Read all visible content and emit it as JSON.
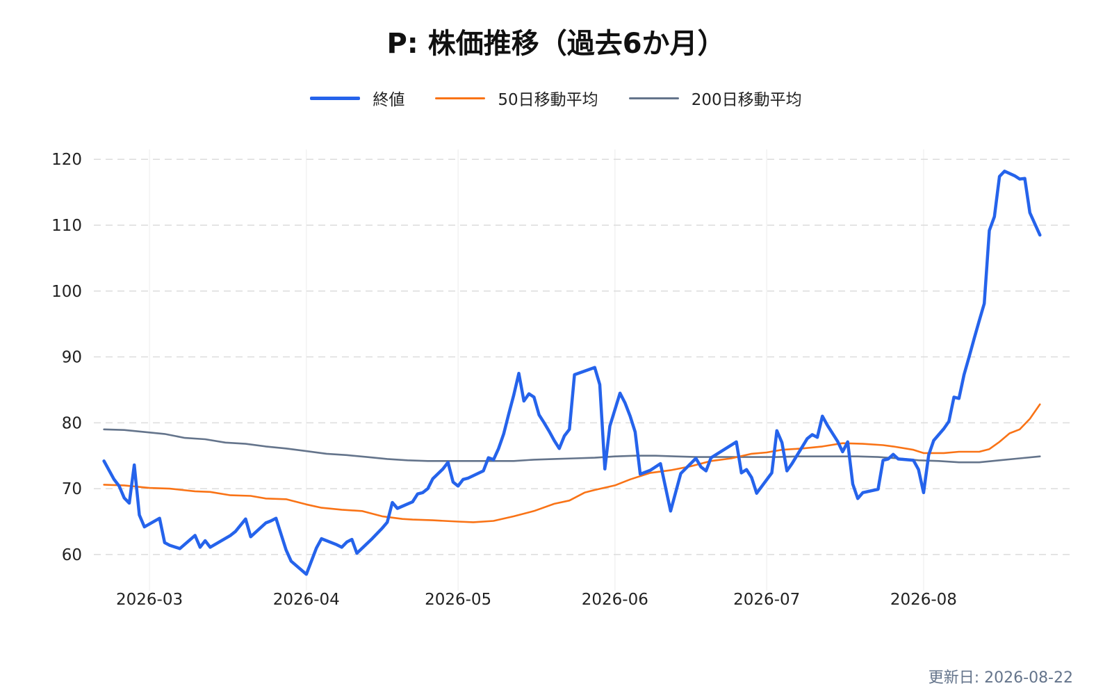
{
  "title": "P: 株価推移（過去6か月）",
  "updated": "更新日: 2026-08-22",
  "chart_data": {
    "type": "line",
    "title": "P: 株価推移（過去6か月）",
    "xlabel": "",
    "ylabel": "",
    "x_type": "date",
    "x_ticks": [
      "2026-03-01",
      "2026-04-01",
      "2026-05-01",
      "2026-06-01",
      "2026-07-01",
      "2026-08-01"
    ],
    "x_tick_labels": [
      "2026-03",
      "2026-04",
      "2026-05",
      "2026-06",
      "2026-07",
      "2026-08"
    ],
    "y_ticks": [
      60,
      70,
      80,
      90,
      100,
      110,
      120
    ],
    "xlim": [
      "2026-02-18",
      "2026-08-30"
    ],
    "ylim": [
      54.5,
      121.5
    ],
    "grid": {
      "y": "dashed",
      "x": "solid-light"
    },
    "legend": "top-center",
    "series": [
      {
        "name": "終値",
        "color": "#2563eb",
        "points": [
          [
            "2026-02-20",
            74.2
          ],
          [
            "2026-02-22",
            71.4
          ],
          [
            "2026-02-23",
            70.4
          ],
          [
            "2026-02-24",
            68.6
          ],
          [
            "2026-02-25",
            67.8
          ],
          [
            "2026-02-26",
            73.6
          ],
          [
            "2026-02-27",
            66.0
          ],
          [
            "2026-02-28",
            64.2
          ],
          [
            "2026-03-03",
            65.5
          ],
          [
            "2026-03-04",
            61.8
          ],
          [
            "2026-03-05",
            61.4
          ],
          [
            "2026-03-07",
            60.9
          ],
          [
            "2026-03-10",
            62.9
          ],
          [
            "2026-03-11",
            61.1
          ],
          [
            "2026-03-12",
            62.1
          ],
          [
            "2026-03-13",
            61.1
          ],
          [
            "2026-03-17",
            62.9
          ],
          [
            "2026-03-18",
            63.5
          ],
          [
            "2026-03-20",
            65.4
          ],
          [
            "2026-03-21",
            62.7
          ],
          [
            "2026-03-24",
            64.8
          ],
          [
            "2026-03-25",
            65.1
          ],
          [
            "2026-03-26",
            65.5
          ],
          [
            "2026-03-28",
            60.7
          ],
          [
            "2026-03-29",
            59.0
          ],
          [
            "2026-04-01",
            57.0
          ],
          [
            "2026-04-03",
            61.0
          ],
          [
            "2026-04-04",
            62.4
          ],
          [
            "2026-04-07",
            61.5
          ],
          [
            "2026-04-08",
            61.1
          ],
          [
            "2026-04-09",
            61.9
          ],
          [
            "2026-04-10",
            62.3
          ],
          [
            "2026-04-11",
            60.2
          ],
          [
            "2026-04-14",
            62.4
          ],
          [
            "2026-04-16",
            64.0
          ],
          [
            "2026-04-17",
            64.9
          ],
          [
            "2026-04-18",
            67.9
          ],
          [
            "2026-04-19",
            67.0
          ],
          [
            "2026-04-22",
            68.0
          ],
          [
            "2026-04-23",
            69.2
          ],
          [
            "2026-04-24",
            69.4
          ],
          [
            "2026-04-25",
            70.0
          ],
          [
            "2026-04-26",
            71.5
          ],
          [
            "2026-04-28",
            73.0
          ],
          [
            "2026-04-29",
            74.0
          ],
          [
            "2026-04-30",
            71.0
          ],
          [
            "2026-05-01",
            70.4
          ],
          [
            "2026-05-02",
            71.4
          ],
          [
            "2026-05-03",
            71.6
          ],
          [
            "2026-05-06",
            72.7
          ],
          [
            "2026-05-07",
            74.7
          ],
          [
            "2026-05-08",
            74.4
          ],
          [
            "2026-05-09",
            76.1
          ],
          [
            "2026-05-10",
            78.3
          ],
          [
            "2026-05-11",
            81.3
          ],
          [
            "2026-05-12",
            84.2
          ],
          [
            "2026-05-13",
            87.5
          ],
          [
            "2026-05-14",
            83.3
          ],
          [
            "2026-05-15",
            84.4
          ],
          [
            "2026-05-16",
            83.9
          ],
          [
            "2026-05-17",
            81.2
          ],
          [
            "2026-05-18",
            80.0
          ],
          [
            "2026-05-19",
            78.7
          ],
          [
            "2026-05-20",
            77.3
          ],
          [
            "2026-05-21",
            76.1
          ],
          [
            "2026-05-22",
            78.0
          ],
          [
            "2026-05-23",
            79.0
          ],
          [
            "2026-05-24",
            87.3
          ],
          [
            "2026-05-28",
            88.4
          ],
          [
            "2026-05-29",
            85.8
          ],
          [
            "2026-05-30",
            73.0
          ],
          [
            "2026-05-31",
            79.5
          ],
          [
            "2026-06-01",
            82.0
          ],
          [
            "2026-06-02",
            84.5
          ],
          [
            "2026-06-03",
            83.0
          ],
          [
            "2026-06-04",
            81.0
          ],
          [
            "2026-06-05",
            78.6
          ],
          [
            "2026-06-06",
            72.2
          ],
          [
            "2026-06-08",
            72.8
          ],
          [
            "2026-06-10",
            73.8
          ],
          [
            "2026-06-12",
            66.6
          ],
          [
            "2026-06-14",
            72.3
          ],
          [
            "2026-06-17",
            74.6
          ],
          [
            "2026-06-18",
            73.3
          ],
          [
            "2026-06-19",
            72.7
          ],
          [
            "2026-06-20",
            74.7
          ],
          [
            "2026-06-25",
            77.1
          ],
          [
            "2026-06-26",
            72.4
          ],
          [
            "2026-06-27",
            72.9
          ],
          [
            "2026-06-28",
            71.7
          ],
          [
            "2026-06-29",
            69.3
          ],
          [
            "2026-07-02",
            72.4
          ],
          [
            "2026-07-03",
            78.8
          ],
          [
            "2026-07-04",
            77.0
          ],
          [
            "2026-07-05",
            72.7
          ],
          [
            "2026-07-06",
            73.8
          ],
          [
            "2026-07-09",
            77.6
          ],
          [
            "2026-07-10",
            78.2
          ],
          [
            "2026-07-11",
            77.8
          ],
          [
            "2026-07-12",
            81.0
          ],
          [
            "2026-07-13",
            79.6
          ],
          [
            "2026-07-15",
            77.2
          ],
          [
            "2026-07-16",
            75.6
          ],
          [
            "2026-07-17",
            77.1
          ],
          [
            "2026-07-18",
            70.7
          ],
          [
            "2026-07-19",
            68.5
          ],
          [
            "2026-07-20",
            69.4
          ],
          [
            "2026-07-23",
            69.9
          ],
          [
            "2026-07-24",
            74.3
          ],
          [
            "2026-07-25",
            74.5
          ],
          [
            "2026-07-26",
            75.2
          ],
          [
            "2026-07-27",
            74.5
          ],
          [
            "2026-07-30",
            74.3
          ],
          [
            "2026-07-31",
            72.9
          ],
          [
            "2026-08-01",
            69.4
          ],
          [
            "2026-08-02",
            75.1
          ],
          [
            "2026-08-03",
            77.3
          ],
          [
            "2026-08-05",
            79.1
          ],
          [
            "2026-08-06",
            80.2
          ],
          [
            "2026-08-07",
            83.9
          ],
          [
            "2026-08-08",
            83.7
          ],
          [
            "2026-08-09",
            87.3
          ],
          [
            "2026-08-10",
            90.0
          ],
          [
            "2026-08-11",
            92.8
          ],
          [
            "2026-08-12",
            95.5
          ],
          [
            "2026-08-13",
            98.1
          ],
          [
            "2026-08-14",
            109.2
          ],
          [
            "2026-08-15",
            111.3
          ],
          [
            "2026-08-16",
            117.4
          ],
          [
            "2026-08-17",
            118.2
          ],
          [
            "2026-08-19",
            117.5
          ],
          [
            "2026-08-20",
            117.0
          ],
          [
            "2026-08-21",
            117.1
          ],
          [
            "2026-08-22",
            111.9
          ],
          [
            "2026-08-23",
            110.2
          ],
          [
            "2026-08-24",
            108.5
          ]
        ]
      },
      {
        "name": "50日移動平均",
        "color": "#f97316",
        "points": [
          [
            "2026-02-20",
            70.6
          ],
          [
            "2026-02-24",
            70.5
          ],
          [
            "2026-03-01",
            70.1
          ],
          [
            "2026-03-05",
            70.0
          ],
          [
            "2026-03-10",
            69.6
          ],
          [
            "2026-03-13",
            69.5
          ],
          [
            "2026-03-17",
            69.0
          ],
          [
            "2026-03-21",
            68.9
          ],
          [
            "2026-03-24",
            68.5
          ],
          [
            "2026-03-28",
            68.4
          ],
          [
            "2026-04-01",
            67.6
          ],
          [
            "2026-04-04",
            67.1
          ],
          [
            "2026-04-08",
            66.8
          ],
          [
            "2026-04-12",
            66.6
          ],
          [
            "2026-04-16",
            65.8
          ],
          [
            "2026-04-20",
            65.4
          ],
          [
            "2026-04-22",
            65.3
          ],
          [
            "2026-04-26",
            65.2
          ],
          [
            "2026-05-01",
            65.0
          ],
          [
            "2026-05-04",
            64.9
          ],
          [
            "2026-05-08",
            65.1
          ],
          [
            "2026-05-12",
            65.8
          ],
          [
            "2026-05-16",
            66.6
          ],
          [
            "2026-05-20",
            67.7
          ],
          [
            "2026-05-23",
            68.2
          ],
          [
            "2026-05-26",
            69.4
          ],
          [
            "2026-05-28",
            69.8
          ],
          [
            "2026-06-01",
            70.5
          ],
          [
            "2026-06-04",
            71.4
          ],
          [
            "2026-06-08",
            72.4
          ],
          [
            "2026-06-12",
            72.8
          ],
          [
            "2026-06-16",
            73.4
          ],
          [
            "2026-06-20",
            74.2
          ],
          [
            "2026-06-24",
            74.6
          ],
          [
            "2026-06-28",
            75.3
          ],
          [
            "2026-07-01",
            75.5
          ],
          [
            "2026-07-04",
            75.9
          ],
          [
            "2026-07-08",
            76.1
          ],
          [
            "2026-07-12",
            76.4
          ],
          [
            "2026-07-16",
            76.9
          ],
          [
            "2026-07-20",
            76.8
          ],
          [
            "2026-07-24",
            76.6
          ],
          [
            "2026-07-26",
            76.4
          ],
          [
            "2026-07-30",
            75.9
          ],
          [
            "2026-08-01",
            75.4
          ],
          [
            "2026-08-05",
            75.4
          ],
          [
            "2026-08-08",
            75.6
          ],
          [
            "2026-08-12",
            75.6
          ],
          [
            "2026-08-14",
            76.0
          ],
          [
            "2026-08-16",
            77.1
          ],
          [
            "2026-08-18",
            78.4
          ],
          [
            "2026-08-20",
            79.0
          ],
          [
            "2026-08-22",
            80.6
          ],
          [
            "2026-08-24",
            82.8
          ]
        ]
      },
      {
        "name": "200日移動平均",
        "color": "#64748b",
        "points": [
          [
            "2026-02-20",
            79.0
          ],
          [
            "2026-02-24",
            78.9
          ],
          [
            "2026-02-28",
            78.6
          ],
          [
            "2026-03-04",
            78.3
          ],
          [
            "2026-03-08",
            77.7
          ],
          [
            "2026-03-12",
            77.5
          ],
          [
            "2026-03-16",
            77.0
          ],
          [
            "2026-03-20",
            76.8
          ],
          [
            "2026-03-24",
            76.4
          ],
          [
            "2026-03-28",
            76.1
          ],
          [
            "2026-04-01",
            75.7
          ],
          [
            "2026-04-05",
            75.3
          ],
          [
            "2026-04-09",
            75.1
          ],
          [
            "2026-04-13",
            74.8
          ],
          [
            "2026-04-17",
            74.5
          ],
          [
            "2026-04-21",
            74.3
          ],
          [
            "2026-04-25",
            74.2
          ],
          [
            "2026-04-29",
            74.2
          ],
          [
            "2026-05-03",
            74.2
          ],
          [
            "2026-05-08",
            74.2
          ],
          [
            "2026-05-12",
            74.2
          ],
          [
            "2026-05-16",
            74.4
          ],
          [
            "2026-05-20",
            74.5
          ],
          [
            "2026-05-24",
            74.6
          ],
          [
            "2026-05-28",
            74.7
          ],
          [
            "2026-06-01",
            74.9
          ],
          [
            "2026-06-05",
            75.0
          ],
          [
            "2026-06-09",
            75.0
          ],
          [
            "2026-06-13",
            74.9
          ],
          [
            "2026-06-17",
            74.8
          ],
          [
            "2026-06-21",
            74.8
          ],
          [
            "2026-06-25",
            74.8
          ],
          [
            "2026-06-29",
            74.8
          ],
          [
            "2026-07-03",
            74.8
          ],
          [
            "2026-07-07",
            74.9
          ],
          [
            "2026-07-11",
            74.9
          ],
          [
            "2026-07-15",
            74.9
          ],
          [
            "2026-07-19",
            74.9
          ],
          [
            "2026-07-23",
            74.8
          ],
          [
            "2026-07-27",
            74.6
          ],
          [
            "2026-07-31",
            74.3
          ],
          [
            "2026-08-04",
            74.2
          ],
          [
            "2026-08-08",
            74.0
          ],
          [
            "2026-08-12",
            74.0
          ],
          [
            "2026-08-16",
            74.3
          ],
          [
            "2026-08-20",
            74.6
          ],
          [
            "2026-08-24",
            74.9
          ]
        ]
      }
    ]
  }
}
